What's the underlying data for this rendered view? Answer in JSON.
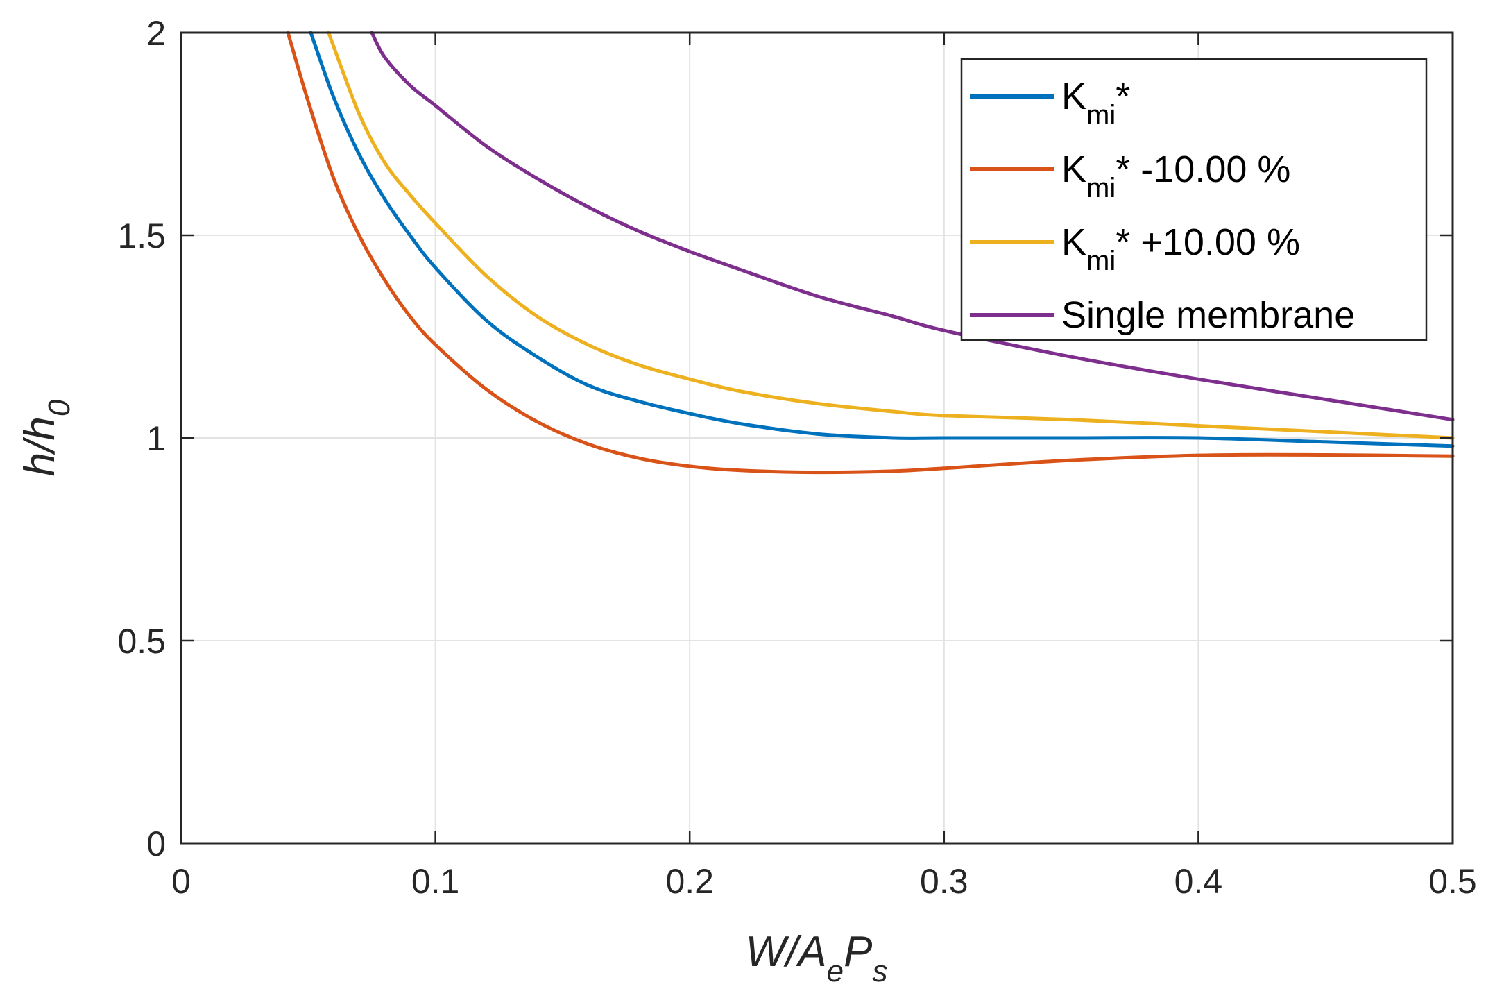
{
  "chart_data": {
    "type": "line",
    "xlabel": {
      "base": "W/A",
      "sub1": "e",
      "mid": "P",
      "sub2": "s"
    },
    "ylabel": {
      "base": "h/h",
      "sub": "0"
    },
    "xlim": [
      0,
      0.5
    ],
    "ylim": [
      0,
      2
    ],
    "grid": true,
    "xticks": [
      0,
      0.1,
      0.2,
      0.3,
      0.4,
      0.5
    ],
    "xtick_labels": [
      "0",
      "0.1",
      "0.2",
      "0.3",
      "0.4",
      "0.5"
    ],
    "yticks": [
      0,
      0.5,
      1,
      1.5,
      2
    ],
    "ytick_labels": [
      "0",
      "0.5",
      "1",
      "1.5",
      "2"
    ],
    "legend_position": "top-right",
    "series": [
      {
        "name": "K_mi*",
        "legend": {
          "main": "K",
          "sub": "mi",
          "rest": "*"
        },
        "color": "#0072BD",
        "x": [
          0.051,
          0.06,
          0.07,
          0.08,
          0.09,
          0.1,
          0.12,
          0.14,
          0.16,
          0.18,
          0.2,
          0.22,
          0.25,
          0.28,
          0.3,
          0.35,
          0.4,
          0.45,
          0.5
        ],
        "y": [
          2.0,
          1.84,
          1.7,
          1.59,
          1.5,
          1.42,
          1.29,
          1.2,
          1.13,
          1.09,
          1.06,
          1.035,
          1.01,
          1.0,
          1.0,
          1.0,
          1.0,
          0.99,
          0.98
        ]
      },
      {
        "name": "K_mi* -10.00 %",
        "legend": {
          "main": "K",
          "sub": "mi",
          "rest": "* -10.00 %"
        },
        "color": "#D95319",
        "x": [
          0.042,
          0.05,
          0.06,
          0.07,
          0.08,
          0.09,
          0.1,
          0.12,
          0.14,
          0.16,
          0.18,
          0.2,
          0.22,
          0.25,
          0.28,
          0.3,
          0.35,
          0.4,
          0.45,
          0.5
        ],
        "y": [
          2.0,
          1.83,
          1.64,
          1.5,
          1.39,
          1.3,
          1.23,
          1.12,
          1.04,
          0.985,
          0.95,
          0.93,
          0.92,
          0.915,
          0.918,
          0.925,
          0.945,
          0.957,
          0.958,
          0.955
        ]
      },
      {
        "name": "K_mi* +10.00 %",
        "legend": {
          "main": "K",
          "sub": "mi",
          "rest": "* +10.00 %"
        },
        "color": "#EDB120",
        "x": [
          0.058,
          0.07,
          0.08,
          0.09,
          0.1,
          0.12,
          0.14,
          0.16,
          0.18,
          0.2,
          0.22,
          0.25,
          0.28,
          0.3,
          0.35,
          0.4,
          0.45,
          0.5
        ],
        "y": [
          2.0,
          1.8,
          1.68,
          1.6,
          1.53,
          1.4,
          1.3,
          1.23,
          1.18,
          1.145,
          1.115,
          1.085,
          1.065,
          1.055,
          1.045,
          1.03,
          1.015,
          1.0
        ]
      },
      {
        "name": "Single membrane",
        "legend": {
          "main": "Single membrane",
          "sub": "",
          "rest": ""
        },
        "color": "#7E2F8E",
        "x": [
          0.075,
          0.08,
          0.09,
          0.1,
          0.12,
          0.14,
          0.16,
          0.18,
          0.2,
          0.22,
          0.25,
          0.28,
          0.3,
          0.35,
          0.4,
          0.45,
          0.5
        ],
        "y": [
          2.0,
          1.94,
          1.87,
          1.82,
          1.72,
          1.64,
          1.57,
          1.51,
          1.46,
          1.415,
          1.35,
          1.3,
          1.265,
          1.2,
          1.145,
          1.095,
          1.045
        ]
      }
    ]
  }
}
